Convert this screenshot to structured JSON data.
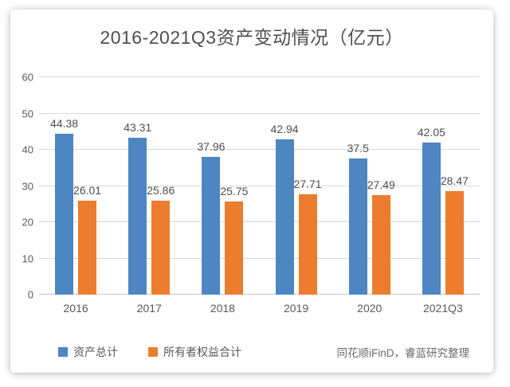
{
  "title": "2016-2021Q3资产变动情况（亿元）",
  "source": "同花顺iFinD，睿蓝研究整理",
  "colors": {
    "bar_blue": "#4d86c2",
    "bar_orange": "#ed7d2e",
    "gridline": "#d9d9d9",
    "axis_text": "#595959",
    "title_text": "#4f4f4f",
    "source_text": "#6b6b6b"
  },
  "chart_data": {
    "type": "bar",
    "title": "2016-2021Q3资产变动情况（亿元）",
    "categories": [
      "2016",
      "2017",
      "2018",
      "2019",
      "2020",
      "2021Q3"
    ],
    "series": [
      {
        "name": "资产总计",
        "color": "#4d86c2",
        "values": [
          44.38,
          43.31,
          37.96,
          42.94,
          37.5,
          42.05
        ]
      },
      {
        "name": "所有者权益合计",
        "color": "#ed7d2e",
        "values": [
          26.01,
          25.86,
          25.75,
          27.71,
          27.49,
          28.47
        ]
      }
    ],
    "xlabel": "",
    "ylabel": "",
    "ylim": [
      0,
      60
    ],
    "y_ticks": [
      0,
      10,
      20,
      30,
      40,
      50,
      60
    ],
    "grid": true,
    "data_labels": true,
    "legend_position": "bottom"
  }
}
